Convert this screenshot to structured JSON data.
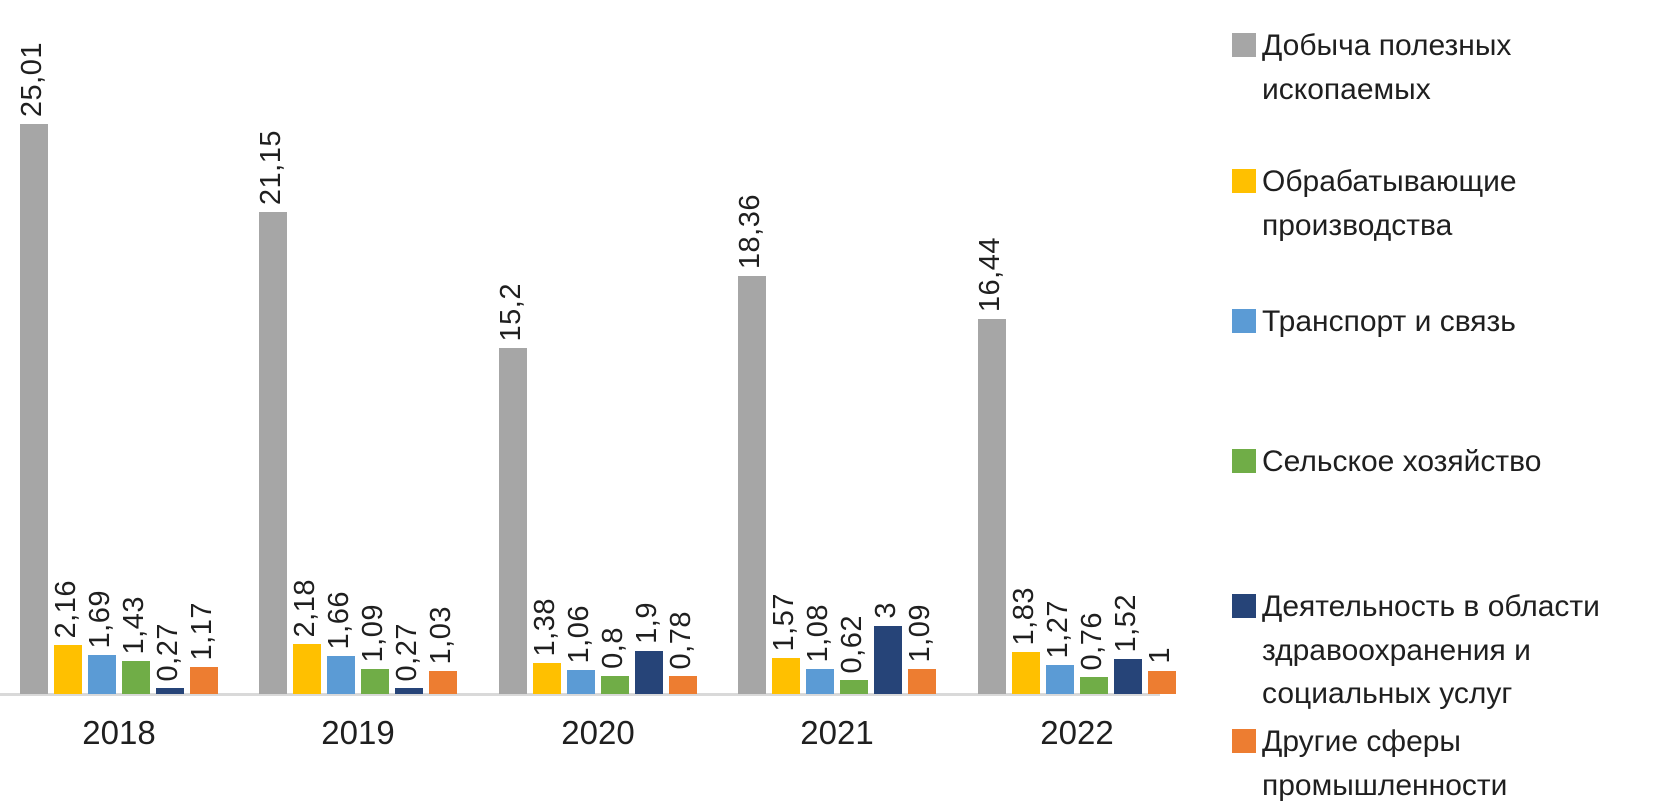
{
  "chart_data": {
    "type": "bar",
    "title": "",
    "xlabel": "",
    "ylabel": "",
    "categories": [
      "2018",
      "2019",
      "2020",
      "2021",
      "2022"
    ],
    "series": [
      {
        "name": "Добыча полезных ископаемых",
        "color": "#A6A6A6",
        "values": [
          25.01,
          21.15,
          15.2,
          18.36,
          16.44
        ],
        "labels": [
          "25,01",
          "21,15",
          "15,2",
          "18,36",
          "16,44"
        ]
      },
      {
        "name": "Обрабатывающие производства",
        "color": "#FFC000",
        "values": [
          2.16,
          2.18,
          1.38,
          1.57,
          1.83
        ],
        "labels": [
          "2,16",
          "2,18",
          "1,38",
          "1,57",
          "1,83"
        ]
      },
      {
        "name": "Транспорт и связь",
        "color": "#5B9BD5",
        "values": [
          1.69,
          1.66,
          1.06,
          1.08,
          1.27
        ],
        "labels": [
          "1,69",
          "1,66",
          "1,06",
          "1,08",
          "1,27"
        ]
      },
      {
        "name": "Сельское хозяйство",
        "color": "#70AD47",
        "values": [
          1.43,
          1.09,
          0.8,
          0.62,
          0.76
        ],
        "labels": [
          "1,43",
          "1,09",
          "0,8",
          "0,62",
          "0,76"
        ]
      },
      {
        "name": "Деятельность в области здравоохранения и социальных услуг",
        "color": "#264478",
        "values": [
          0.27,
          0.27,
          1.9,
          3,
          1.52
        ],
        "labels": [
          "0,27",
          "0,27",
          "1,9",
          "3",
          "1,52"
        ]
      },
      {
        "name": "Другие сферы промышленности",
        "color": "#ED7D31",
        "values": [
          1.17,
          1.03,
          0.78,
          1.09,
          1
        ],
        "labels": [
          "1,17",
          "1,03",
          "0,78",
          "1,09",
          "1"
        ]
      }
    ],
    "ylim": [
      0,
      25.01
    ],
    "grid": false,
    "legend_position": "right",
    "axis_line_color": "#D9D9D9",
    "data_label_rotation": 90
  }
}
